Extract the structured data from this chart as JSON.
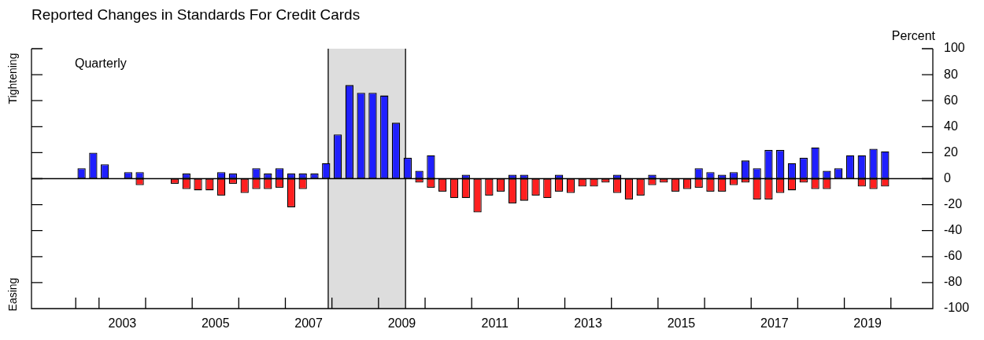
{
  "chart_data": {
    "type": "bar",
    "stacked": true,
    "title": "Reported Changes in Standards For Credit Cards",
    "ylabel": "Percent",
    "annotations": [
      "Quarterly",
      "Tightening",
      "Easing"
    ],
    "x": [
      2002.625,
      2002.875,
      2003.125,
      2003.375,
      2003.625,
      2003.875,
      2004.125,
      2004.375,
      2004.625,
      2004.875,
      2005.125,
      2005.375,
      2005.625,
      2005.875,
      2006.125,
      2006.375,
      2006.625,
      2006.875,
      2007.125,
      2007.375,
      2007.625,
      2007.875,
      2008.125,
      2008.375,
      2008.625,
      2008.875,
      2009.125,
      2009.375,
      2009.625,
      2009.875,
      2010.125,
      2010.375,
      2010.625,
      2010.875,
      2011.125,
      2011.375,
      2011.625,
      2011.875,
      2012.125,
      2012.375,
      2012.625,
      2012.875,
      2013.125,
      2013.375,
      2013.625,
      2013.875,
      2014.125,
      2014.375,
      2014.625,
      2014.875,
      2015.125,
      2015.375,
      2015.625,
      2015.875,
      2016.125,
      2016.375,
      2016.625,
      2016.875,
      2017.125,
      2017.375,
      2017.625,
      2017.875,
      2018.125,
      2018.375,
      2018.625,
      2018.875,
      2019.125,
      2019.375,
      2019.625,
      2019.875
    ],
    "series": [
      {
        "color": "#1f1fff",
        "values": [
          8,
          20,
          11,
          0,
          5,
          5,
          0,
          0,
          null,
          4,
          null,
          null,
          5,
          4,
          null,
          8,
          4,
          8,
          4,
          4,
          4,
          12,
          34,
          72,
          66,
          66,
          64,
          43,
          16,
          6,
          18,
          null,
          null,
          3,
          null,
          null,
          null,
          3,
          3,
          null,
          null,
          3,
          null,
          null,
          null,
          null,
          3,
          null,
          null,
          3,
          null,
          null,
          null,
          8,
          5,
          3,
          5,
          14,
          8,
          22,
          22,
          12,
          16,
          24,
          6,
          8,
          18,
          18,
          23,
          21
        ]
      },
      {
        "color": "#ff1f1f",
        "values": [
          null,
          null,
          null,
          0,
          null,
          -5,
          0,
          0,
          -4,
          -8,
          -9,
          -9,
          -13,
          -4,
          -11,
          -8,
          -8,
          -7,
          -22,
          -8,
          null,
          null,
          null,
          null,
          null,
          null,
          null,
          null,
          null,
          -3,
          -7,
          -10,
          -15,
          -15,
          -26,
          -13,
          -10,
          -19,
          -17,
          -13,
          -15,
          -10,
          -11,
          -6,
          -6,
          -3,
          -11,
          -16,
          -13,
          -5,
          -3,
          -10,
          -8,
          -7,
          -10,
          -10,
          -5,
          -3,
          -16,
          -16,
          -11,
          -9,
          -3,
          -8,
          -8,
          null,
          null,
          -6,
          -8,
          -6
        ]
      }
    ],
    "xlim": [
      2001.55,
      2020.9
    ],
    "xticks": [
      {
        "value": 2002.5,
        "label": null
      },
      {
        "value": 2003,
        "label": null
      },
      {
        "value": 2003.5,
        "label": "2003"
      },
      {
        "value": 2004,
        "label": null
      },
      {
        "value": 2005,
        "label": null
      },
      {
        "value": 2005.5,
        "label": "2005"
      },
      {
        "value": 2006,
        "label": null
      },
      {
        "value": 2007,
        "label": null
      },
      {
        "value": 2007.5,
        "label": "2007"
      },
      {
        "value": 2008,
        "label": null
      },
      {
        "value": 2009,
        "label": null
      },
      {
        "value": 2009.5,
        "label": "2009"
      },
      {
        "value": 2010,
        "label": null
      },
      {
        "value": 2011,
        "label": null
      },
      {
        "value": 2011.5,
        "label": "2011"
      },
      {
        "value": 2012,
        "label": null
      },
      {
        "value": 2013,
        "label": null
      },
      {
        "value": 2013.5,
        "label": "2013"
      },
      {
        "value": 2014,
        "label": null
      },
      {
        "value": 2015,
        "label": null
      },
      {
        "value": 2015.5,
        "label": "2015"
      },
      {
        "value": 2016,
        "label": null
      },
      {
        "value": 2017,
        "label": null
      },
      {
        "value": 2017.5,
        "label": "2017"
      },
      {
        "value": 2018,
        "label": null
      },
      {
        "value": 2019,
        "label": null
      },
      {
        "value": 2019.5,
        "label": "2019"
      },
      {
        "value": 2020,
        "label": null
      }
    ],
    "ylim": [
      -100,
      100
    ],
    "yticks": [
      -100,
      -80,
      -60,
      -40,
      -20,
      0,
      20,
      40,
      60,
      80,
      100
    ],
    "bands": [
      {
        "axis": "x",
        "from": 2007.92,
        "to": 2009.58,
        "color": "#dddddd"
      }
    ],
    "ref_lines": [
      {
        "axis": "y",
        "value": 0,
        "color": "#000000"
      }
    ],
    "grid": false,
    "legend": false
  }
}
